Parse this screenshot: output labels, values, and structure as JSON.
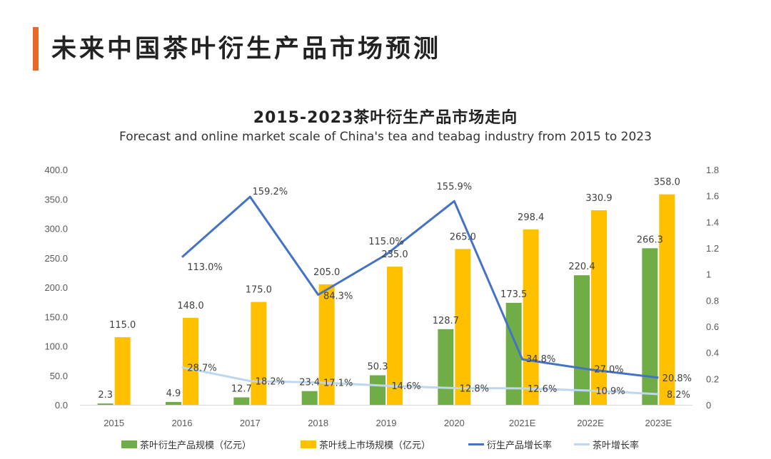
{
  "page": {
    "title": "未来中国茶叶衍生产品市场预测"
  },
  "chart_data": {
    "type": "bar",
    "title": "2015-2023茶叶衍生产品市场走向",
    "subtitle": "Forecast and online market scale of China's tea and teabag industry from 2015 to 2023",
    "categories": [
      "2015",
      "2016",
      "2017",
      "2018",
      "2019",
      "2020",
      "2021E",
      "2022E",
      "2023E"
    ],
    "y_left": {
      "ticks": [
        "0.0",
        "50.0",
        "100.0",
        "150.0",
        "200.0",
        "250.0",
        "300.0",
        "350.0",
        "400.0"
      ],
      "ylim": [
        0,
        400
      ]
    },
    "y_right": {
      "ticks": [
        "0",
        "0.2",
        "0.4",
        "0.6",
        "0.8",
        "1",
        "1.2",
        "1.4",
        "1.6",
        "1.8"
      ],
      "ylim": [
        0,
        1.8
      ]
    },
    "series": [
      {
        "name": "茶叶衍生产品规模（亿元）",
        "type": "bar",
        "axis": "left",
        "color": "#70ad47",
        "values": [
          2.3,
          4.9,
          12.7,
          23.4,
          50.3,
          128.7,
          173.5,
          220.4,
          266.3
        ],
        "labels": [
          "2.3",
          "4.9",
          "12.7",
          "23.4",
          "50.3",
          "128.7",
          "173.5",
          "220.4",
          "266.3"
        ]
      },
      {
        "name": "茶叶线上市场规模（亿元）",
        "type": "bar",
        "axis": "left",
        "color": "#ffc000",
        "values": [
          115.0,
          148.0,
          175.0,
          205.0,
          235.0,
          265.0,
          298.4,
          330.9,
          358.0
        ],
        "labels": [
          "115.0",
          "148.0",
          "175.0",
          "205.0",
          "235.0",
          "265.0",
          "298.4",
          "330.9",
          "358.0"
        ]
      },
      {
        "name": "衍生产品增长率",
        "type": "line",
        "axis": "right",
        "color": "#4472c4",
        "values": [
          null,
          1.13,
          1.592,
          0.843,
          1.15,
          1.559,
          0.348,
          0.27,
          0.208
        ],
        "labels": [
          "",
          "113.0%",
          "159.2%",
          "84.3%",
          "115.0%",
          "155.9%",
          "34.8%",
          "27.0%",
          "20.8%"
        ]
      },
      {
        "name": "茶叶增长率",
        "type": "line",
        "axis": "right",
        "color": "#bdd7ee",
        "values": [
          null,
          0.287,
          0.182,
          0.171,
          0.146,
          0.128,
          0.126,
          0.109,
          0.082
        ],
        "labels": [
          "",
          "28.7%",
          "18.2%",
          "17.1%",
          "14.6%",
          "12.8%",
          "12.6%",
          "10.9%",
          "8.2%"
        ]
      }
    ],
    "legend_position": "bottom",
    "grid": false
  }
}
